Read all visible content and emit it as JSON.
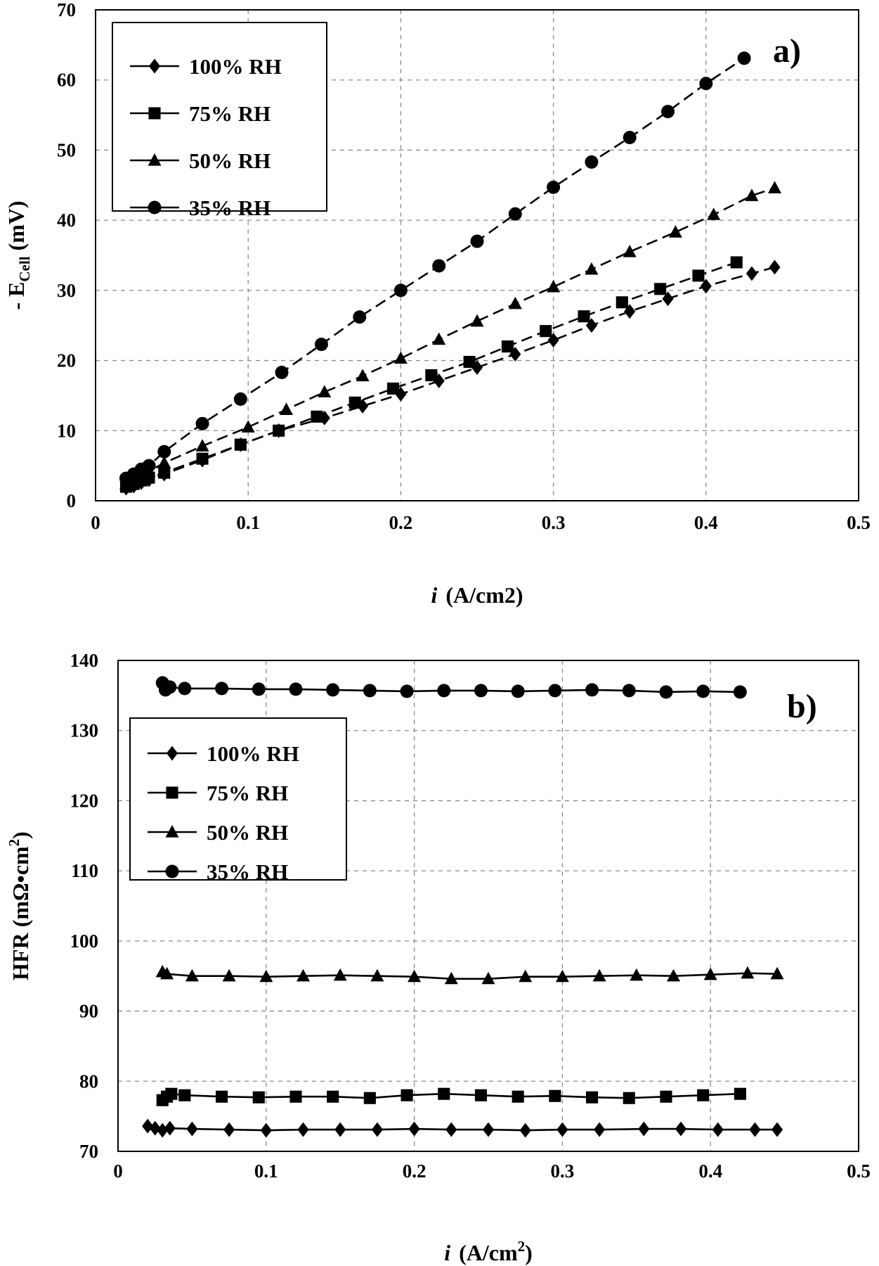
{
  "chart_data": [
    {
      "type": "line",
      "panel_label": "a)",
      "xlabel_italic": "i",
      "xlabel_unit": "(A/cm2)",
      "ylabel_prefix": "- E",
      "ylabel_sub": "Cell",
      "ylabel_suffix": " (mV)",
      "xlim": [
        0,
        0.5
      ],
      "ylim": [
        0,
        70
      ],
      "xticks": [
        0,
        0.1,
        0.2,
        0.3,
        0.4,
        0.5
      ],
      "xtick_labels": [
        "0",
        "0.1",
        "0.2",
        "0.3",
        "0.4",
        "0.5"
      ],
      "yticks": [
        0,
        10,
        20,
        30,
        40,
        50,
        60,
        70
      ],
      "ytick_labels": [
        "0",
        "10",
        "20",
        "30",
        "40",
        "50",
        "60",
        "70"
      ],
      "grid": true,
      "line_style": "dashed",
      "legend_position": "top-left",
      "series": [
        {
          "name": "100% RH",
          "marker": "diamond",
          "x": [
            0.02,
            0.025,
            0.03,
            0.035,
            0.045,
            0.07,
            0.095,
            0.12,
            0.15,
            0.175,
            0.2,
            0.225,
            0.25,
            0.275,
            0.3,
            0.325,
            0.35,
            0.375,
            0.4,
            0.43,
            0.445
          ],
          "y": [
            1.8,
            2.1,
            2.6,
            3.0,
            3.8,
            5.8,
            8.0,
            10.0,
            11.8,
            13.5,
            15.2,
            17.1,
            19.0,
            20.9,
            22.9,
            25.0,
            27.0,
            28.8,
            30.6,
            32.4,
            33.3
          ]
        },
        {
          "name": "75% RH",
          "marker": "square",
          "x": [
            0.02,
            0.025,
            0.03,
            0.035,
            0.045,
            0.07,
            0.095,
            0.12,
            0.145,
            0.17,
            0.195,
            0.22,
            0.245,
            0.27,
            0.295,
            0.32,
            0.345,
            0.37,
            0.395,
            0.42
          ],
          "y": [
            2.0,
            2.4,
            2.9,
            3.3,
            4.0,
            6.0,
            8.0,
            10.0,
            12.0,
            14.0,
            16.0,
            17.9,
            19.8,
            22.0,
            24.2,
            26.3,
            28.3,
            30.2,
            32.1,
            34.0
          ]
        },
        {
          "name": "50% RH",
          "marker": "triangle",
          "x": [
            0.02,
            0.025,
            0.03,
            0.035,
            0.045,
            0.07,
            0.1,
            0.125,
            0.15,
            0.175,
            0.2,
            0.225,
            0.25,
            0.275,
            0.3,
            0.325,
            0.35,
            0.38,
            0.405,
            0.43,
            0.445
          ],
          "y": [
            2.4,
            3.0,
            3.6,
            4.2,
            5.4,
            7.8,
            10.5,
            13.0,
            15.5,
            17.8,
            20.3,
            23.0,
            25.6,
            28.1,
            30.5,
            33.0,
            35.5,
            38.3,
            40.8,
            43.5,
            44.6
          ]
        },
        {
          "name": "35% RH",
          "marker": "circle",
          "x": [
            0.02,
            0.025,
            0.03,
            0.035,
            0.045,
            0.07,
            0.095,
            0.122,
            0.148,
            0.173,
            0.2,
            0.225,
            0.25,
            0.275,
            0.3,
            0.325,
            0.35,
            0.375,
            0.4,
            0.425
          ],
          "y": [
            3.2,
            3.8,
            4.5,
            5.0,
            7.0,
            11.0,
            14.5,
            18.3,
            22.3,
            26.2,
            30.0,
            33.5,
            37.0,
            40.9,
            44.7,
            48.3,
            51.8,
            55.5,
            59.5,
            63.1
          ]
        }
      ]
    },
    {
      "type": "line",
      "panel_label": "b)",
      "xlabel_italic": "i",
      "xlabel_unit_prefix": "(A/cm",
      "xlabel_unit_sup": "2",
      "xlabel_unit_suffix": ")",
      "ylabel_prefix": "HFR (mΩ•cm",
      "ylabel_sup": "2",
      "ylabel_suffix": ")",
      "xlim": [
        0,
        0.5
      ],
      "ylim": [
        70,
        140
      ],
      "xticks": [
        0,
        0.1,
        0.2,
        0.3,
        0.4,
        0.5
      ],
      "xtick_labels": [
        "0",
        "0.1",
        "0.2",
        "0.3",
        "0.4",
        "0.5"
      ],
      "yticks": [
        70,
        80,
        90,
        100,
        110,
        120,
        130,
        140
      ],
      "ytick_labels": [
        "70",
        "80",
        "90",
        "100",
        "110",
        "120",
        "130",
        "140"
      ],
      "grid": true,
      "line_style": "solid",
      "legend_position": "upper-left",
      "series": [
        {
          "name": "100% RH",
          "marker": "diamond",
          "x": [
            0.02,
            0.025,
            0.03,
            0.035,
            0.05,
            0.075,
            0.1,
            0.125,
            0.15,
            0.175,
            0.2,
            0.225,
            0.25,
            0.275,
            0.3,
            0.325,
            0.355,
            0.38,
            0.405,
            0.43,
            0.445
          ],
          "y": [
            73.6,
            73.3,
            73.0,
            73.3,
            73.2,
            73.1,
            73.0,
            73.1,
            73.1,
            73.1,
            73.2,
            73.1,
            73.1,
            73.0,
            73.1,
            73.1,
            73.2,
            73.2,
            73.1,
            73.1,
            73.1
          ]
        },
        {
          "name": "75% RH",
          "marker": "square",
          "x": [
            0.03,
            0.033,
            0.036,
            0.045,
            0.07,
            0.095,
            0.12,
            0.145,
            0.17,
            0.195,
            0.22,
            0.245,
            0.27,
            0.295,
            0.32,
            0.345,
            0.37,
            0.395,
            0.42
          ],
          "y": [
            77.3,
            77.8,
            78.2,
            78.0,
            77.8,
            77.7,
            77.8,
            77.8,
            77.6,
            78.0,
            78.2,
            78.0,
            77.8,
            77.9,
            77.7,
            77.6,
            77.8,
            78.0,
            78.2
          ]
        },
        {
          "name": "50% RH",
          "marker": "triangle",
          "x": [
            0.03,
            0.033,
            0.05,
            0.075,
            0.1,
            0.125,
            0.15,
            0.175,
            0.2,
            0.225,
            0.25,
            0.275,
            0.3,
            0.325,
            0.35,
            0.375,
            0.4,
            0.425,
            0.445
          ],
          "y": [
            95.6,
            95.3,
            95.0,
            95.0,
            94.9,
            95.0,
            95.1,
            95.0,
            94.9,
            94.6,
            94.6,
            94.9,
            94.9,
            95.0,
            95.1,
            95.0,
            95.2,
            95.4,
            95.3
          ]
        },
        {
          "name": "35% RH",
          "marker": "circle",
          "x": [
            0.03,
            0.032,
            0.035,
            0.045,
            0.07,
            0.095,
            0.12,
            0.145,
            0.17,
            0.195,
            0.22,
            0.245,
            0.27,
            0.295,
            0.32,
            0.345,
            0.37,
            0.395,
            0.42
          ],
          "y": [
            136.8,
            135.8,
            136.2,
            136.0,
            136.0,
            135.9,
            135.9,
            135.8,
            135.7,
            135.6,
            135.7,
            135.7,
            135.6,
            135.7,
            135.8,
            135.7,
            135.5,
            135.6,
            135.5
          ]
        }
      ]
    }
  ]
}
